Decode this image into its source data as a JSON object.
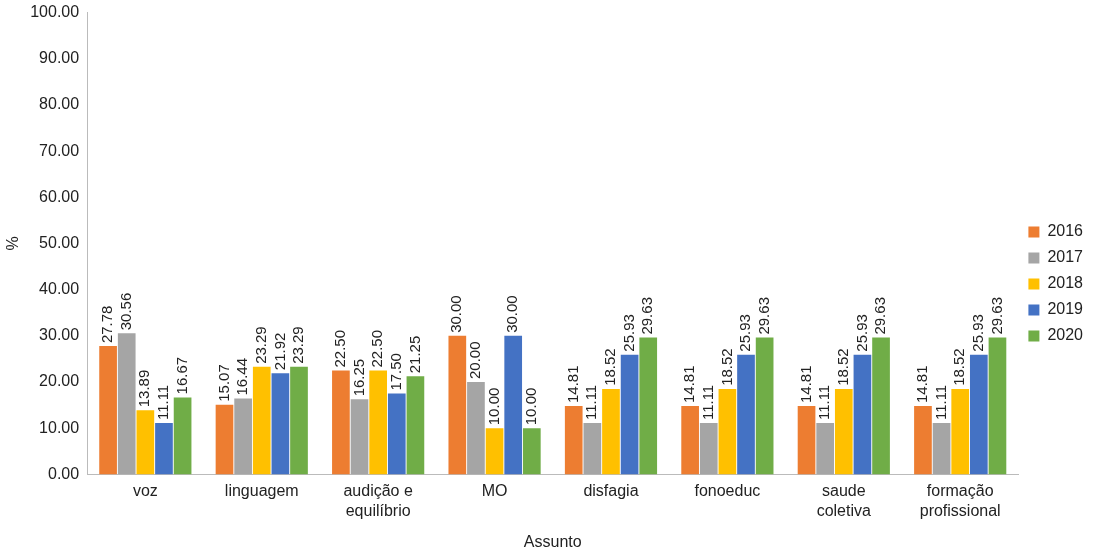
{
  "chart_data": {
    "type": "bar",
    "xlabel": "Assunto",
    "ylabel": "%",
    "categories": [
      "voz",
      "linguagem",
      "audição e equilíbrio",
      "MO",
      "disfagia",
      "fonoeduc",
      "saude coletiva",
      "formação profissional"
    ],
    "series": [
      {
        "name": "2016",
        "color": "#ed7d31",
        "values": [
          27.78,
          15.07,
          22.5,
          30,
          14.81,
          14.81,
          14.81,
          14.81
        ],
        "value_labels": [
          "27.78",
          "15.07",
          "22.50",
          "30.00",
          "14.81",
          "14.81",
          "14.81",
          "14.81"
        ]
      },
      {
        "name": "2017",
        "color": "#a5a5a5",
        "values": [
          30.56,
          16.44,
          16.25,
          20,
          11.11,
          11.11,
          11.11,
          11.11
        ],
        "value_labels": [
          "30.56",
          "16.44",
          "16.25",
          "20.00",
          "11.11",
          "11.11",
          "11.11",
          "11.11"
        ]
      },
      {
        "name": "2018",
        "color": "#ffc000",
        "values": [
          13.89,
          23.29,
          22.5,
          10,
          18.52,
          18.52,
          18.52,
          18.52
        ],
        "value_labels": [
          "13.89",
          "23.29",
          "22.50",
          "10.00",
          "18.52",
          "18.52",
          "18.52",
          "18.52"
        ]
      },
      {
        "name": "2019",
        "color": "#4472c4",
        "values": [
          11.11,
          21.92,
          17.5,
          30,
          25.93,
          25.93,
          25.93,
          25.93
        ],
        "value_labels": [
          "11.11",
          "21.92",
          "17.50",
          "30.00",
          "25.93",
          "25.93",
          "25.93",
          "25.93"
        ]
      },
      {
        "name": "2020",
        "color": "#70ad47",
        "values": [
          16.67,
          23.29,
          21.25,
          10,
          29.63,
          29.63,
          29.63,
          29.63
        ],
        "value_labels": [
          "16.67",
          "23.29",
          "21.25",
          "10.00",
          "29.63",
          "29.63",
          "29.63",
          "29.63"
        ]
      }
    ],
    "ylim": [
      0,
      100
    ],
    "yticks": [
      {
        "value": 0,
        "label": "0.00"
      },
      {
        "value": 10,
        "label": "10.00"
      },
      {
        "value": 20,
        "label": "20.00"
      },
      {
        "value": 30,
        "label": "30.00"
      },
      {
        "value": 40,
        "label": "40.00"
      },
      {
        "value": 50,
        "label": "50.00"
      },
      {
        "value": 60,
        "label": "60.00"
      },
      {
        "value": 70,
        "label": "70.00"
      },
      {
        "value": 80,
        "label": "80.00"
      },
      {
        "value": 90,
        "label": "90.00"
      },
      {
        "value": 100,
        "label": "100.00"
      }
    ],
    "grid": false,
    "legend": "right"
  }
}
